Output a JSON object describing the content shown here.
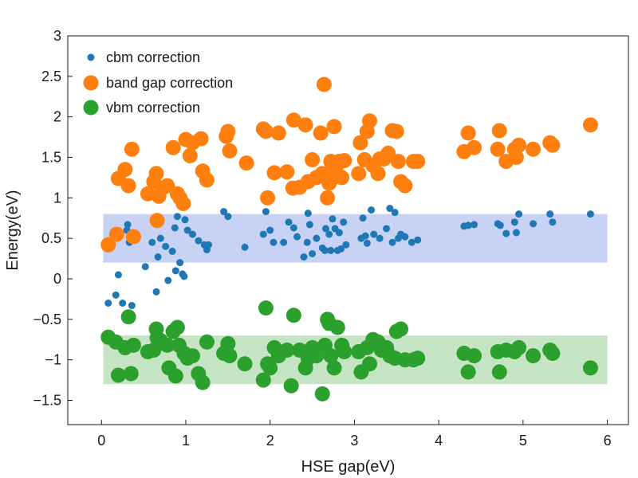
{
  "chart_data": {
    "type": "scatter",
    "xlabel": "HSE gap(eV)",
    "ylabel": "Energy(eV)",
    "xlim": [
      -0.4,
      6.25
    ],
    "ylim": [
      -1.8,
      3.0
    ],
    "xticks": [
      0,
      1,
      2,
      3,
      4,
      5,
      6
    ],
    "yticks": [
      -1.5,
      -1,
      -0.5,
      0,
      0.5,
      1,
      1.5,
      2,
      2.5,
      3
    ],
    "x_tick_labels": [
      "0",
      "1",
      "2",
      "3",
      "4",
      "5",
      "6"
    ],
    "y_tick_labels": [
      "−1.5",
      "−1",
      "−0.5",
      "0",
      "0.5",
      "1",
      "1.5",
      "2",
      "2.5",
      "3"
    ],
    "grid": false,
    "legend_position": "top-left",
    "bands": [
      {
        "color": "#c8d2f5",
        "x": [
          0.02,
          6.0
        ],
        "y": [
          0.2,
          0.8
        ]
      },
      {
        "color": "#c4e4c4",
        "x": [
          0.02,
          6.0
        ],
        "y": [
          -1.3,
          -0.7
        ]
      }
    ],
    "series": [
      {
        "name": "cbm correction",
        "color": "#1f77b4",
        "marker_size": "small",
        "points": [
          [
            0.08,
            -0.3
          ],
          [
            0.17,
            -0.2
          ],
          [
            0.2,
            0.05
          ],
          [
            0.25,
            -0.3
          ],
          [
            0.3,
            0.6
          ],
          [
            0.31,
            0.67
          ],
          [
            0.33,
            0.45
          ],
          [
            0.36,
            -0.33
          ],
          [
            0.52,
            0.15
          ],
          [
            0.6,
            0.45
          ],
          [
            0.63,
            0.72
          ],
          [
            0.65,
            -0.16
          ],
          [
            0.67,
            0.27
          ],
          [
            0.7,
            0.5
          ],
          [
            0.76,
            0.4
          ],
          [
            0.79,
            -0.02
          ],
          [
            0.84,
            0.34
          ],
          [
            0.87,
            0.63
          ],
          [
            0.88,
            0.1
          ],
          [
            0.9,
            0.77
          ],
          [
            0.93,
            0.2
          ],
          [
            0.96,
            0.06
          ],
          [
            0.98,
            0.03
          ],
          [
            0.99,
            0.73
          ],
          [
            1.02,
            0.6
          ],
          [
            1.08,
            0.55
          ],
          [
            1.15,
            0.47
          ],
          [
            1.22,
            0.42
          ],
          [
            1.25,
            0.36
          ],
          [
            1.27,
            0.42
          ],
          [
            1.45,
            0.83
          ],
          [
            1.5,
            0.77
          ],
          [
            1.7,
            0.39
          ],
          [
            1.92,
            0.55
          ],
          [
            1.95,
            0.83
          ],
          [
            2.0,
            0.6
          ],
          [
            2.04,
            0.45
          ],
          [
            2.16,
            0.45
          ],
          [
            2.22,
            0.7
          ],
          [
            2.28,
            0.63
          ],
          [
            2.32,
            0.52
          ],
          [
            2.4,
            0.27
          ],
          [
            2.44,
            0.45
          ],
          [
            2.45,
            0.81
          ],
          [
            2.47,
            0.67
          ],
          [
            2.5,
            0.31
          ],
          [
            2.55,
            0.5
          ],
          [
            2.62,
            0.38
          ],
          [
            2.65,
            0.35
          ],
          [
            2.66,
            0.62
          ],
          [
            2.7,
            0.55
          ],
          [
            2.72,
            0.35
          ],
          [
            2.74,
            0.74
          ],
          [
            2.77,
            0.62
          ],
          [
            2.8,
            0.35
          ],
          [
            2.82,
            0.57
          ],
          [
            2.84,
            0.37
          ],
          [
            2.87,
            0.7
          ],
          [
            2.9,
            0.42
          ],
          [
            3.08,
            0.5
          ],
          [
            3.1,
            0.75
          ],
          [
            3.13,
            0.53
          ],
          [
            3.15,
            0.44
          ],
          [
            3.2,
            0.85
          ],
          [
            3.23,
            0.55
          ],
          [
            3.3,
            0.5
          ],
          [
            3.38,
            0.62
          ],
          [
            3.42,
            0.87
          ],
          [
            3.45,
            0.45
          ],
          [
            3.48,
            0.82
          ],
          [
            3.52,
            0.5
          ],
          [
            3.55,
            0.55
          ],
          [
            3.6,
            0.52
          ],
          [
            3.68,
            0.45
          ],
          [
            3.75,
            0.48
          ],
          [
            4.3,
            0.65
          ],
          [
            4.35,
            0.66
          ],
          [
            4.42,
            0.67
          ],
          [
            4.7,
            0.68
          ],
          [
            4.73,
            0.66
          ],
          [
            4.8,
            0.56
          ],
          [
            4.9,
            0.7
          ],
          [
            4.92,
            0.57
          ],
          [
            4.95,
            0.8
          ],
          [
            5.12,
            0.68
          ],
          [
            5.32,
            0.8
          ],
          [
            5.35,
            0.7
          ],
          [
            5.8,
            0.8
          ]
        ]
      },
      {
        "name": "band gap correction",
        "color": "#ff7f0e",
        "marker_size": "large",
        "points": [
          [
            0.08,
            0.42
          ],
          [
            0.18,
            0.55
          ],
          [
            0.2,
            1.24
          ],
          [
            0.28,
            1.35
          ],
          [
            0.32,
            1.15
          ],
          [
            0.36,
            1.6
          ],
          [
            0.38,
            0.52
          ],
          [
            0.55,
            1.05
          ],
          [
            0.62,
            1.2
          ],
          [
            0.65,
            1.3
          ],
          [
            0.66,
            0.72
          ],
          [
            0.68,
            1.02
          ],
          [
            0.72,
            1.12
          ],
          [
            0.78,
            1.15
          ],
          [
            0.85,
            1.62
          ],
          [
            0.9,
            1.05
          ],
          [
            0.93,
            1.0
          ],
          [
            0.97,
            0.93
          ],
          [
            1.0,
            1.72
          ],
          [
            1.05,
            1.52
          ],
          [
            1.08,
            1.68
          ],
          [
            1.18,
            1.73
          ],
          [
            1.2,
            1.33
          ],
          [
            1.25,
            1.22
          ],
          [
            1.48,
            1.76
          ],
          [
            1.5,
            1.82
          ],
          [
            1.52,
            1.58
          ],
          [
            1.72,
            1.43
          ],
          [
            1.92,
            1.85
          ],
          [
            1.95,
            1.82
          ],
          [
            1.97,
            1.0
          ],
          [
            2.05,
            1.31
          ],
          [
            2.1,
            1.8
          ],
          [
            2.2,
            1.32
          ],
          [
            2.27,
            1.12
          ],
          [
            2.28,
            1.96
          ],
          [
            2.35,
            1.13
          ],
          [
            2.42,
            1.9
          ],
          [
            2.45,
            1.2
          ],
          [
            2.5,
            1.47
          ],
          [
            2.55,
            1.25
          ],
          [
            2.6,
            1.8
          ],
          [
            2.62,
            1.3
          ],
          [
            2.64,
            2.4
          ],
          [
            2.68,
            1.0
          ],
          [
            2.7,
            1.18
          ],
          [
            2.72,
            1.45
          ],
          [
            2.75,
            1.25
          ],
          [
            2.76,
            1.88
          ],
          [
            2.78,
            1.38
          ],
          [
            2.82,
            1.45
          ],
          [
            2.85,
            1.25
          ],
          [
            2.88,
            1.46
          ],
          [
            3.05,
            1.3
          ],
          [
            3.07,
            1.68
          ],
          [
            3.12,
            1.47
          ],
          [
            3.15,
            1.82
          ],
          [
            3.18,
            1.95
          ],
          [
            3.22,
            1.4
          ],
          [
            3.28,
            1.3
          ],
          [
            3.3,
            1.48
          ],
          [
            3.35,
            1.48
          ],
          [
            3.4,
            1.55
          ],
          [
            3.45,
            1.83
          ],
          [
            3.5,
            1.82
          ],
          [
            3.52,
            1.45
          ],
          [
            3.55,
            1.2
          ],
          [
            3.6,
            1.15
          ],
          [
            3.7,
            1.45
          ],
          [
            3.75,
            1.45
          ],
          [
            4.3,
            1.57
          ],
          [
            4.35,
            1.8
          ],
          [
            4.42,
            1.62
          ],
          [
            4.7,
            1.6
          ],
          [
            4.72,
            1.83
          ],
          [
            4.8,
            1.45
          ],
          [
            4.9,
            1.6
          ],
          [
            4.92,
            1.5
          ],
          [
            4.95,
            1.65
          ],
          [
            5.12,
            1.6
          ],
          [
            5.32,
            1.68
          ],
          [
            5.35,
            1.65
          ],
          [
            5.8,
            1.9
          ]
        ]
      },
      {
        "name": "vbm correction",
        "color": "#2ca02c",
        "marker_size": "large",
        "points": [
          [
            0.08,
            -0.72
          ],
          [
            0.17,
            -0.78
          ],
          [
            0.2,
            -1.19
          ],
          [
            0.28,
            -0.85
          ],
          [
            0.32,
            -0.47
          ],
          [
            0.35,
            -1.17
          ],
          [
            0.38,
            -0.82
          ],
          [
            0.55,
            -0.9
          ],
          [
            0.62,
            -0.88
          ],
          [
            0.65,
            -0.62
          ],
          [
            0.66,
            -0.73
          ],
          [
            0.7,
            -0.76
          ],
          [
            0.78,
            -0.82
          ],
          [
            0.8,
            -1.1
          ],
          [
            0.85,
            -0.65
          ],
          [
            0.88,
            -1.2
          ],
          [
            0.9,
            -0.6
          ],
          [
            0.92,
            -0.82
          ],
          [
            0.98,
            -0.92
          ],
          [
            1.02,
            -0.98
          ],
          [
            1.08,
            -0.95
          ],
          [
            1.15,
            -1.17
          ],
          [
            1.2,
            -1.28
          ],
          [
            1.25,
            -0.78
          ],
          [
            1.45,
            -0.92
          ],
          [
            1.5,
            -0.8
          ],
          [
            1.52,
            -0.95
          ],
          [
            1.7,
            -1.05
          ],
          [
            1.92,
            -1.25
          ],
          [
            1.95,
            -0.36
          ],
          [
            1.97,
            -1.05
          ],
          [
            2.0,
            -1.1
          ],
          [
            2.05,
            -0.85
          ],
          [
            2.1,
            -0.95
          ],
          [
            2.2,
            -0.88
          ],
          [
            2.25,
            -1.32
          ],
          [
            2.28,
            -0.45
          ],
          [
            2.35,
            -0.88
          ],
          [
            2.42,
            -1.1
          ],
          [
            2.45,
            -0.98
          ],
          [
            2.5,
            -0.85
          ],
          [
            2.55,
            -0.95
          ],
          [
            2.62,
            -1.42
          ],
          [
            2.65,
            -0.82
          ],
          [
            2.68,
            -0.5
          ],
          [
            2.7,
            -0.55
          ],
          [
            2.72,
            -0.95
          ],
          [
            2.76,
            -1.1
          ],
          [
            2.8,
            -0.6
          ],
          [
            2.85,
            -0.82
          ],
          [
            2.88,
            -0.9
          ],
          [
            3.05,
            -0.9
          ],
          [
            3.08,
            -1.15
          ],
          [
            3.15,
            -0.85
          ],
          [
            3.18,
            -1.05
          ],
          [
            3.22,
            -0.75
          ],
          [
            3.28,
            -0.78
          ],
          [
            3.32,
            -0.88
          ],
          [
            3.38,
            -0.85
          ],
          [
            3.42,
            -0.95
          ],
          [
            3.48,
            -0.98
          ],
          [
            3.5,
            -0.65
          ],
          [
            3.55,
            -0.62
          ],
          [
            3.6,
            -1.0
          ],
          [
            3.7,
            -1.0
          ],
          [
            3.75,
            -0.98
          ],
          [
            4.3,
            -0.92
          ],
          [
            4.35,
            -1.15
          ],
          [
            4.42,
            -0.95
          ],
          [
            4.7,
            -0.9
          ],
          [
            4.72,
            -1.15
          ],
          [
            4.8,
            -0.88
          ],
          [
            4.9,
            -0.9
          ],
          [
            4.95,
            -0.85
          ],
          [
            5.12,
            -0.95
          ],
          [
            5.32,
            -0.88
          ],
          [
            5.35,
            -0.92
          ],
          [
            5.8,
            -1.1
          ]
        ]
      }
    ]
  }
}
